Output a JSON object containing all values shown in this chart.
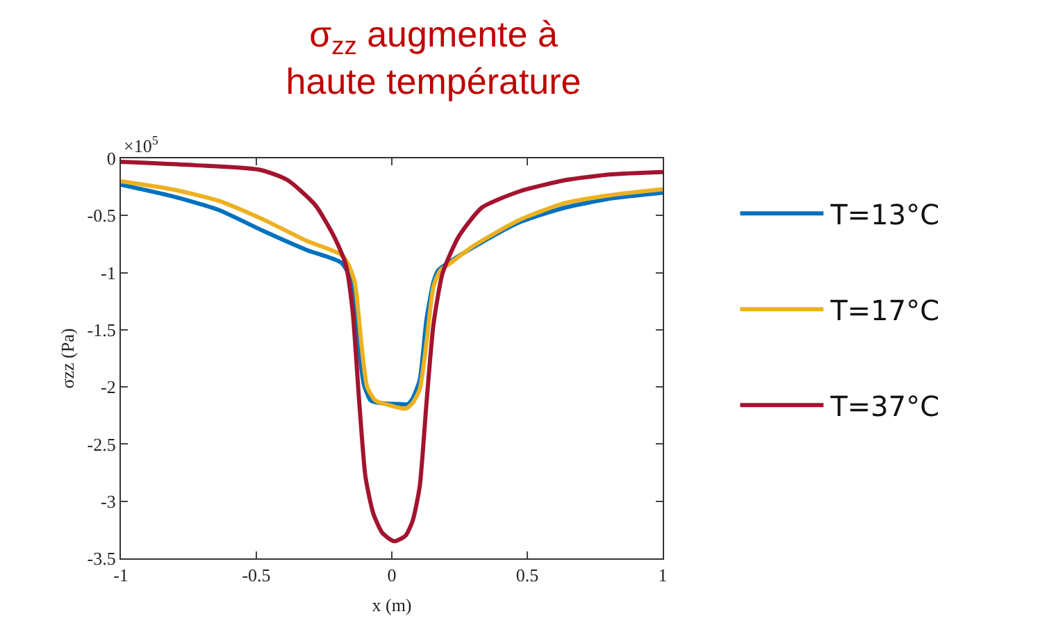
{
  "chart_data": {
    "type": "line",
    "title": "σ$_{zz}$ augmente à\nhaute température",
    "xlabel": "x (m)",
    "ylabel": "σzz (Pa)",
    "annotations": [
      "×10$^{5}$"
    ],
    "xlim": [
      -1,
      1
    ],
    "xticks": [
      -1,
      -0.5,
      0,
      0.5,
      1
    ],
    "ylim": [
      -3.5,
      0
    ],
    "yticks": [
      -3.5,
      -3,
      -2.5,
      -2,
      -1.5,
      -1,
      -0.5,
      0
    ],
    "legend": "right",
    "marker": "none",
    "line_style": "solid",
    "series": [
      {
        "name": "T=13°C",
        "color": "#0072bd",
        "x": [
          -1,
          -0.812,
          -0.641,
          -0.47,
          -0.316,
          -0.188,
          -0.154,
          -0.128,
          -0.103,
          -0.077,
          -0.043,
          0.026,
          0.06,
          0.077,
          0.103,
          0.128,
          0.154,
          0.171,
          0.205,
          0.299,
          0.47,
          0.641,
          0.812,
          1
        ],
        "values": [
          -0.23,
          -0.33,
          -0.45,
          -0.64,
          -0.8,
          -0.91,
          -1.04,
          -1.53,
          -1.98,
          -2.12,
          -2.14,
          -2.15,
          -2.15,
          -2.1,
          -1.94,
          -1.41,
          -1.08,
          -0.98,
          -0.92,
          -0.78,
          -0.56,
          -0.43,
          -0.35,
          -0.3
        ]
      },
      {
        "name": "T=17°C",
        "color": "#edb120",
        "x": [
          -1,
          -0.812,
          -0.641,
          -0.47,
          -0.316,
          -0.188,
          -0.162,
          -0.137,
          -0.111,
          -0.091,
          -0.06,
          -0.009,
          0.051,
          0.077,
          0.103,
          0.128,
          0.154,
          0.179,
          0.214,
          0.299,
          0.47,
          0.641,
          0.812,
          1
        ],
        "values": [
          -0.2,
          -0.27,
          -0.37,
          -0.54,
          -0.72,
          -0.84,
          -0.92,
          -1.08,
          -1.65,
          -2.0,
          -2.12,
          -2.16,
          -2.19,
          -2.14,
          -2.02,
          -1.61,
          -1.12,
          -0.98,
          -0.92,
          -0.77,
          -0.54,
          -0.39,
          -0.32,
          -0.27
        ]
      },
      {
        "name": "T=37°C",
        "color": "#a2142f",
        "x": [
          -1,
          -0.726,
          -0.487,
          -0.385,
          -0.282,
          -0.214,
          -0.171,
          -0.145,
          -0.12,
          -0.097,
          -0.068,
          -0.034,
          0.009,
          0.051,
          0.077,
          0.103,
          0.128,
          0.154,
          0.188,
          0.248,
          0.333,
          0.47,
          0.641,
          0.812,
          1
        ],
        "values": [
          -0.03,
          -0.06,
          -0.1,
          -0.19,
          -0.41,
          -0.68,
          -0.92,
          -1.33,
          -2.14,
          -2.79,
          -3.11,
          -3.28,
          -3.35,
          -3.3,
          -3.17,
          -2.87,
          -2.14,
          -1.45,
          -1.0,
          -0.68,
          -0.43,
          -0.29,
          -0.19,
          -0.14,
          -0.12
        ]
      }
    ]
  }
}
